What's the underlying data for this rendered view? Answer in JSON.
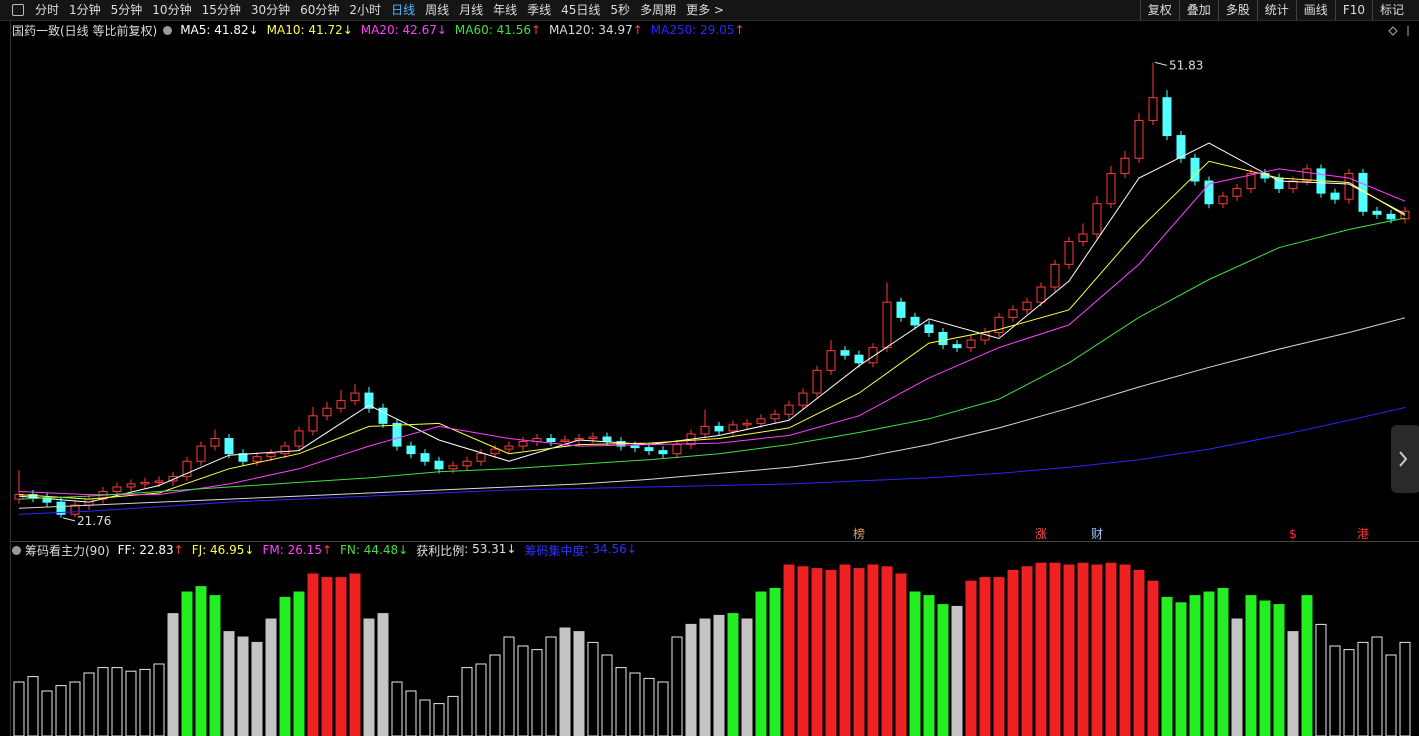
{
  "toolbar": {
    "periods": [
      "分时",
      "1分钟",
      "5分钟",
      "10分钟",
      "15分钟",
      "30分钟",
      "60分钟",
      "2小时",
      "日线",
      "周线",
      "月线",
      "年线",
      "季线",
      "45日线",
      "5秒",
      "多周期",
      "更多 >"
    ],
    "active": "日线",
    "tools": [
      "复权",
      "叠加",
      "多股",
      "统计",
      "画线",
      "F10",
      "标记"
    ]
  },
  "chart_data": [
    {
      "type": "candlestick",
      "title": "国药一致(日线 等比前复权)",
      "ylim": [
        20.3,
        54.3
      ],
      "up_color": "#ff3c3c",
      "down_color": "#54ffff",
      "legend_separator": ": ",
      "open": [
        23.0,
        23.3,
        23.1,
        22.8,
        22.0,
        22.6,
        23.0,
        23.5,
        23.8,
        24.0,
        24.1,
        24.2,
        24.5,
        25.5,
        26.5,
        27.0,
        26.0,
        25.5,
        25.8,
        26.0,
        26.5,
        27.5,
        28.5,
        29.0,
        29.5,
        30.0,
        29.0,
        28.0,
        26.5,
        26.0,
        25.5,
        25.0,
        25.2,
        25.5,
        26.0,
        26.3,
        26.5,
        26.8,
        27.0,
        26.8,
        26.9,
        27.0,
        27.1,
        26.8,
        26.5,
        26.4,
        26.2,
        26.0,
        26.6,
        27.3,
        27.8,
        27.5,
        27.9,
        28.0,
        28.3,
        28.6,
        29.2,
        30.0,
        31.5,
        32.8,
        32.5,
        32.0,
        33.0,
        36.0,
        35.0,
        34.5,
        34.0,
        33.2,
        33.0,
        33.5,
        34.0,
        35.0,
        35.5,
        36.0,
        37.0,
        38.5,
        40.0,
        40.5,
        42.5,
        44.5,
        45.5,
        48.0,
        49.5,
        47.0,
        45.5,
        44.0,
        42.5,
        43.0,
        43.5,
        44.5,
        44.2,
        43.5,
        44.0,
        44.8,
        43.2,
        42.8,
        44.5,
        42.0,
        41.8,
        41.5
      ],
      "high": [
        24.9,
        23.6,
        23.4,
        23.1,
        22.9,
        23.3,
        23.8,
        24.1,
        24.3,
        24.4,
        24.5,
        24.8,
        25.8,
        26.8,
        27.6,
        27.3,
        26.3,
        26.1,
        26.3,
        26.8,
        27.8,
        29.1,
        29.4,
        30.2,
        30.6,
        30.4,
        29.3,
        28.3,
        26.8,
        26.3,
        25.8,
        25.5,
        25.8,
        26.3,
        26.6,
        26.8,
        27.1,
        27.3,
        27.3,
        27.2,
        27.3,
        27.4,
        27.4,
        27.1,
        26.8,
        26.7,
        26.5,
        26.9,
        27.6,
        28.9,
        28.1,
        28.2,
        28.3,
        28.6,
        28.9,
        29.5,
        30.3,
        31.8,
        33.5,
        33.1,
        32.8,
        33.3,
        37.3,
        36.3,
        35.3,
        34.8,
        34.3,
        33.5,
        33.8,
        34.3,
        35.3,
        35.8,
        36.3,
        37.3,
        38.8,
        40.3,
        41.2,
        43.0,
        45.0,
        46.0,
        48.5,
        51.83,
        50.0,
        47.3,
        45.8,
        44.3,
        43.3,
        43.8,
        44.8,
        44.8,
        44.5,
        44.3,
        45.1,
        45.1,
        43.5,
        44.8,
        44.8,
        42.3,
        42.1,
        42.3
      ],
      "low": [
        22.7,
        22.8,
        22.5,
        21.76,
        21.8,
        22.3,
        22.7,
        23.2,
        23.5,
        23.7,
        23.8,
        23.9,
        24.2,
        25.2,
        26.2,
        25.7,
        25.2,
        25.2,
        25.5,
        25.7,
        26.2,
        27.2,
        28.2,
        28.7,
        29.2,
        28.7,
        27.7,
        26.2,
        25.7,
        25.2,
        24.7,
        24.7,
        24.9,
        25.2,
        25.7,
        26.0,
        26.2,
        26.5,
        26.5,
        26.5,
        26.6,
        26.7,
        26.5,
        26.2,
        26.1,
        25.9,
        25.7,
        25.7,
        26.3,
        27.0,
        27.2,
        27.2,
        27.6,
        27.7,
        28.0,
        28.3,
        28.9,
        29.7,
        31.2,
        32.2,
        31.7,
        31.7,
        32.7,
        34.7,
        34.2,
        33.7,
        32.9,
        32.7,
        32.7,
        33.2,
        33.7,
        34.7,
        35.2,
        35.7,
        36.7,
        38.2,
        39.7,
        40.2,
        42.2,
        44.2,
        45.2,
        47.7,
        46.7,
        45.2,
        43.7,
        42.2,
        42.2,
        42.7,
        43.2,
        43.9,
        43.2,
        43.2,
        43.7,
        42.9,
        42.5,
        42.5,
        41.7,
        41.5,
        41.2,
        41.2
      ],
      "close": [
        23.3,
        23.1,
        22.8,
        22.0,
        22.6,
        23.0,
        23.5,
        23.8,
        24.0,
        24.1,
        24.2,
        24.5,
        25.5,
        26.5,
        27.0,
        26.0,
        25.5,
        25.8,
        26.0,
        26.5,
        27.5,
        28.5,
        29.0,
        29.5,
        30.0,
        29.0,
        28.0,
        26.5,
        26.0,
        25.5,
        25.0,
        25.2,
        25.5,
        26.0,
        26.3,
        26.5,
        26.8,
        27.0,
        26.8,
        26.9,
        27.0,
        27.1,
        26.8,
        26.5,
        26.4,
        26.2,
        26.0,
        26.6,
        27.3,
        27.8,
        27.5,
        27.9,
        28.0,
        28.3,
        28.6,
        29.2,
        30.0,
        31.5,
        32.8,
        32.5,
        32.0,
        33.0,
        36.0,
        35.0,
        34.5,
        34.0,
        33.2,
        33.0,
        33.5,
        34.0,
        35.0,
        35.5,
        36.0,
        37.0,
        38.5,
        40.0,
        40.5,
        42.5,
        44.5,
        45.5,
        48.0,
        49.5,
        47.0,
        45.5,
        44.0,
        42.5,
        43.0,
        43.5,
        44.5,
        44.2,
        43.5,
        44.0,
        44.8,
        43.2,
        42.8,
        44.5,
        42.0,
        41.8,
        41.5,
        42.0
      ],
      "ma": [
        {
          "name": "MA5",
          "color": "#ffffff",
          "trend": "↓",
          "x": [
            0,
            5,
            10,
            15,
            20,
            25,
            30,
            35,
            40,
            45,
            50,
            55,
            60,
            65,
            70,
            75,
            80,
            85,
            90,
            95,
            99
          ],
          "values": [
            23.2,
            22.8,
            23.9,
            25.9,
            26.2,
            29.2,
            26.9,
            25.5,
            26.9,
            26.6,
            27.2,
            28.2,
            31.8,
            34.9,
            33.6,
            37.4,
            44.2,
            46.5,
            44.0,
            43.8,
            41.82
          ]
        },
        {
          "name": "MA10",
          "color": "#ffff40",
          "trend": "↓",
          "x": [
            0,
            5,
            10,
            15,
            20,
            25,
            30,
            35,
            40,
            45,
            50,
            55,
            60,
            65,
            70,
            75,
            80,
            85,
            90,
            95,
            99
          ],
          "values": [
            23.3,
            23.0,
            23.4,
            25.0,
            26.0,
            27.8,
            28.0,
            26.0,
            26.6,
            26.7,
            27.0,
            27.7,
            30.0,
            33.3,
            34.2,
            35.5,
            40.8,
            45.3,
            44.2,
            43.9,
            41.72
          ]
        },
        {
          "name": "MA20",
          "color": "#ff40ff",
          "trend": "↓",
          "x": [
            0,
            5,
            10,
            15,
            20,
            25,
            30,
            35,
            40,
            45,
            50,
            55,
            60,
            65,
            70,
            75,
            80,
            85,
            90,
            95,
            99
          ],
          "values": [
            23.5,
            23.3,
            23.3,
            24.0,
            25.0,
            26.5,
            27.8,
            27.0,
            26.5,
            26.6,
            26.7,
            27.2,
            28.5,
            31.0,
            33.0,
            34.5,
            38.5,
            43.8,
            44.8,
            44.2,
            42.67
          ]
        },
        {
          "name": "MA60",
          "color": "#40e040",
          "trend": "↑",
          "x": [
            0,
            5,
            10,
            15,
            20,
            25,
            30,
            35,
            40,
            45,
            50,
            55,
            60,
            65,
            70,
            75,
            80,
            85,
            90,
            95,
            99
          ],
          "values": [
            23.0,
            23.2,
            23.5,
            23.8,
            24.1,
            24.4,
            24.8,
            25.0,
            25.3,
            25.6,
            26.0,
            26.6,
            27.4,
            28.3,
            29.6,
            32.0,
            35.0,
            37.5,
            39.6,
            40.8,
            41.56
          ]
        },
        {
          "name": "MA120",
          "color": "#d8d8d8",
          "trend": "↑",
          "x": [
            0,
            5,
            10,
            15,
            20,
            25,
            30,
            35,
            40,
            45,
            50,
            55,
            60,
            65,
            70,
            75,
            80,
            85,
            90,
            95,
            99
          ],
          "values": [
            22.4,
            22.6,
            22.8,
            23.0,
            23.2,
            23.4,
            23.6,
            23.8,
            24.0,
            24.3,
            24.7,
            25.1,
            25.7,
            26.6,
            27.7,
            29.0,
            30.4,
            31.7,
            32.9,
            34.0,
            34.97
          ]
        },
        {
          "name": "MA250",
          "color": "#2828ff",
          "trend": "↑",
          "x": [
            0,
            5,
            10,
            15,
            20,
            25,
            30,
            35,
            40,
            45,
            50,
            55,
            60,
            65,
            70,
            75,
            80,
            85,
            90,
            95,
            99
          ],
          "values": [
            22.0,
            22.2,
            22.5,
            22.8,
            23.0,
            23.2,
            23.4,
            23.6,
            23.7,
            23.8,
            23.9,
            24.0,
            24.2,
            24.4,
            24.7,
            25.1,
            25.6,
            26.3,
            27.2,
            28.2,
            29.05
          ]
        }
      ],
      "markers": [
        {
          "text": "榜",
          "day": 60,
          "color": "#e0a060"
        },
        {
          "text": "涨",
          "day": 73,
          "color": "#ff5050"
        },
        {
          "text": "财",
          "day": 77,
          "color": "#a0c8ff"
        },
        {
          "text": "$",
          "day": 91,
          "color": "#ff3030"
        },
        {
          "text": "港",
          "day": 96,
          "color": "#ff3030"
        }
      ]
    },
    {
      "type": "bar",
      "title": "筹码看主力(90)",
      "ylim": [
        0,
        100
      ],
      "legend_separator": ": ",
      "indicators": [
        {
          "name": "FF",
          "value": 22.83,
          "trend": "↑",
          "color": "#ffffff"
        },
        {
          "name": "FJ",
          "value": 46.95,
          "trend": "↓",
          "color": "#ffff40"
        },
        {
          "name": "FM",
          "value": 26.15,
          "trend": "↑",
          "color": "#ff40ff"
        },
        {
          "name": "FN",
          "value": 44.48,
          "trend": "↓",
          "color": "#40e040"
        },
        {
          "name": "获利比例",
          "value": 53.31,
          "trend": "↓",
          "color": "#e0e0e0"
        },
        {
          "name": "筹码集中度",
          "value": 34.56,
          "trend": "↓",
          "color": "#3030ff"
        }
      ],
      "palette": {
        "w": "#e8e8e8",
        "s": "#c4c4c4",
        "g": "#22ee22",
        "r": "#ee2222"
      },
      "values": [
        30,
        33,
        25,
        28,
        30,
        35,
        38,
        38,
        36,
        37,
        40,
        68,
        80,
        83,
        78,
        58,
        55,
        52,
        65,
        77,
        80,
        90,
        88,
        88,
        90,
        65,
        68,
        30,
        25,
        20,
        18,
        22,
        38,
        40,
        45,
        55,
        50,
        48,
        55,
        60,
        58,
        52,
        45,
        38,
        35,
        32,
        30,
        55,
        62,
        65,
        67,
        68,
        65,
        80,
        82,
        95,
        94,
        93,
        92,
        95,
        93,
        95,
        94,
        90,
        80,
        78,
        73,
        72,
        86,
        88,
        88,
        92,
        94,
        96,
        96,
        95,
        96,
        95,
        96,
        95,
        92,
        86,
        77,
        74,
        78,
        80,
        82,
        65,
        78,
        75,
        73,
        58,
        78,
        62,
        50,
        48,
        52,
        55,
        45,
        52
      ],
      "bar_styles": [
        "w",
        "w",
        "w",
        "w",
        "w",
        "w",
        "w",
        "w",
        "w",
        "w",
        "w",
        "s",
        "g",
        "g",
        "g",
        "s",
        "s",
        "s",
        "s",
        "g",
        "g",
        "r",
        "r",
        "r",
        "r",
        "s",
        "s",
        "w",
        "w",
        "w",
        "w",
        "w",
        "w",
        "w",
        "w",
        "w",
        "w",
        "w",
        "w",
        "s",
        "s",
        "w",
        "w",
        "w",
        "w",
        "w",
        "w",
        "w",
        "s",
        "s",
        "s",
        "g",
        "s",
        "g",
        "g",
        "r",
        "r",
        "r",
        "r",
        "r",
        "r",
        "r",
        "r",
        "r",
        "g",
        "g",
        "g",
        "s",
        "r",
        "r",
        "r",
        "r",
        "r",
        "r",
        "r",
        "r",
        "r",
        "r",
        "r",
        "r",
        "r",
        "r",
        "g",
        "g",
        "g",
        "g",
        "g",
        "s",
        "g",
        "g",
        "g",
        "s",
        "g",
        "w",
        "w",
        "w",
        "w",
        "w",
        "w",
        "w"
      ]
    }
  ]
}
